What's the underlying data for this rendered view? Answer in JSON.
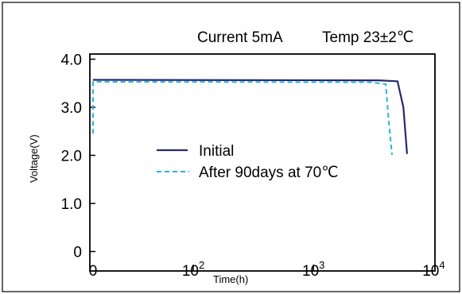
{
  "chart_data": {
    "type": "line",
    "annotations": {
      "current": "Current 5mA",
      "temp": "Temp 23±2℃"
    },
    "xlabel": "Time(h)",
    "ylabel": "Voltage(V)",
    "x_tick_labels": [
      {
        "value": 0,
        "base": "0",
        "exp": ""
      },
      {
        "value": 100,
        "base": "10",
        "exp": "2"
      },
      {
        "value": 1000,
        "base": "10",
        "exp": "3"
      },
      {
        "value": 10000,
        "base": "10",
        "exp": "4"
      }
    ],
    "y_ticks": [
      0,
      1.0,
      2.0,
      3.0,
      4.0
    ],
    "y_tick_labels": [
      "0",
      "1.0",
      "2.0",
      "3.0",
      "4.0"
    ],
    "ylim": [
      0,
      4.0
    ],
    "grid": false,
    "legend_position": "center-left",
    "series": [
      {
        "name": "Initial",
        "color": "#27296b",
        "style": "solid",
        "points": [
          [
            0,
            3.57
          ],
          [
            3500,
            3.56
          ],
          [
            5000,
            3.54
          ],
          [
            5600,
            3.0
          ],
          [
            6000,
            2.03
          ]
        ]
      },
      {
        "name": "After 90days at 70℃",
        "color": "#29b3e0",
        "style": "dashed",
        "points": [
          [
            0,
            2.45
          ],
          [
            1,
            3.53
          ],
          [
            3000,
            3.52
          ],
          [
            4000,
            3.48
          ],
          [
            4200,
            2.8
          ],
          [
            4500,
            2.01
          ]
        ]
      }
    ]
  }
}
